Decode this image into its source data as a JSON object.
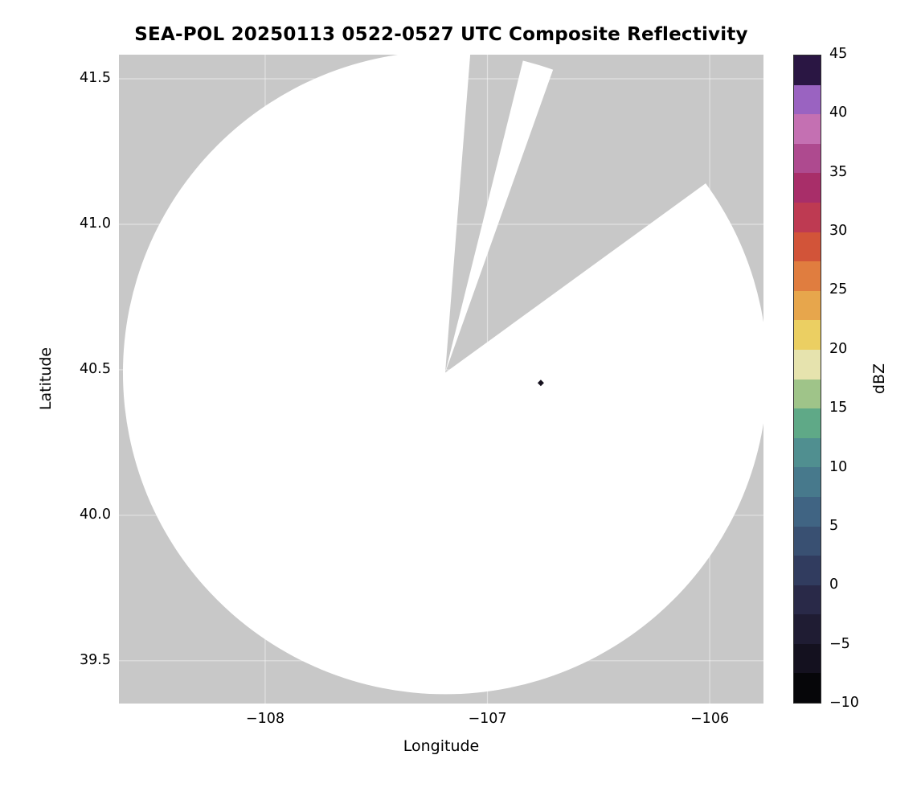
{
  "figure": {
    "title": "SEA-POL 20250113 0522-0527 UTC Composite Reflectivity",
    "xlabel": "Longitude",
    "ylabel": "Latitude",
    "colorbar_label": "dBZ",
    "background_color": "#ffffff",
    "masked_region_color": "#c8c8c8",
    "grid_color": "rgba(255,255,255,0.45)"
  },
  "chart_data": {
    "type": "heatmap",
    "title": "SEA-POL 20250113 0522-0527 UTC Composite Reflectivity",
    "xlabel": "Longitude",
    "ylabel": "Latitude",
    "xlim": [
      -108.658,
      -105.758
    ],
    "ylim": [
      39.353,
      41.583
    ],
    "grid": true,
    "xticks": [
      {
        "value": -108,
        "label": "−108"
      },
      {
        "value": -107,
        "label": "−107"
      },
      {
        "value": -106,
        "label": "−106"
      }
    ],
    "yticks": [
      {
        "value": 41.5,
        "label": "41.5"
      },
      {
        "value": 41.0,
        "label": "41.0"
      },
      {
        "value": 40.5,
        "label": "40.5"
      },
      {
        "value": 40.0,
        "label": "40.0"
      },
      {
        "value": 39.5,
        "label": "39.5"
      }
    ],
    "radar_coverage": {
      "description": "White circular radar scan footprint over gray masked background; two gray wedge-shaped missing-data sectors extend from the radar center toward the north and northeast",
      "center_lon": -107.19,
      "center_lat": 40.49,
      "radius_lon_deg": 1.45,
      "radius_lat_deg": 1.105,
      "missing_sector_azimuths_deg": [
        [
          4.5,
          14
        ],
        [
          19.6,
          54
        ]
      ]
    },
    "echoes": [
      {
        "lon": -106.76,
        "lat": 40.455,
        "color": "#17121f",
        "note": "small dark echo speck"
      }
    ],
    "colorbar": {
      "label": "dBZ",
      "min": -10,
      "max": 45,
      "ticks": [
        {
          "value": 45,
          "label": "45"
        },
        {
          "value": 40,
          "label": "40"
        },
        {
          "value": 35,
          "label": "35"
        },
        {
          "value": 30,
          "label": "30"
        },
        {
          "value": 25,
          "label": "25"
        },
        {
          "value": 20,
          "label": "20"
        },
        {
          "value": 15,
          "label": "15"
        },
        {
          "value": 10,
          "label": "10"
        },
        {
          "value": 5,
          "label": "5"
        },
        {
          "value": 0,
          "label": "0"
        },
        {
          "value": -5,
          "label": "−5"
        },
        {
          "value": -10,
          "label": "−10"
        }
      ],
      "segment_step_dbz": 2.5,
      "segment_colors_low_to_high": [
        "#060609",
        "#14111f",
        "#1f1c33",
        "#292948",
        "#313c5f",
        "#395072",
        "#406483",
        "#47798c",
        "#508f90",
        "#5fa987",
        "#9fc489",
        "#e6e3ae",
        "#ebcf62",
        "#e7a64c",
        "#e07d3f",
        "#d25439",
        "#be3a52",
        "#a82e69",
        "#ae4a8f",
        "#c470b2",
        "#9a63c1",
        "#2a1643"
      ]
    }
  }
}
